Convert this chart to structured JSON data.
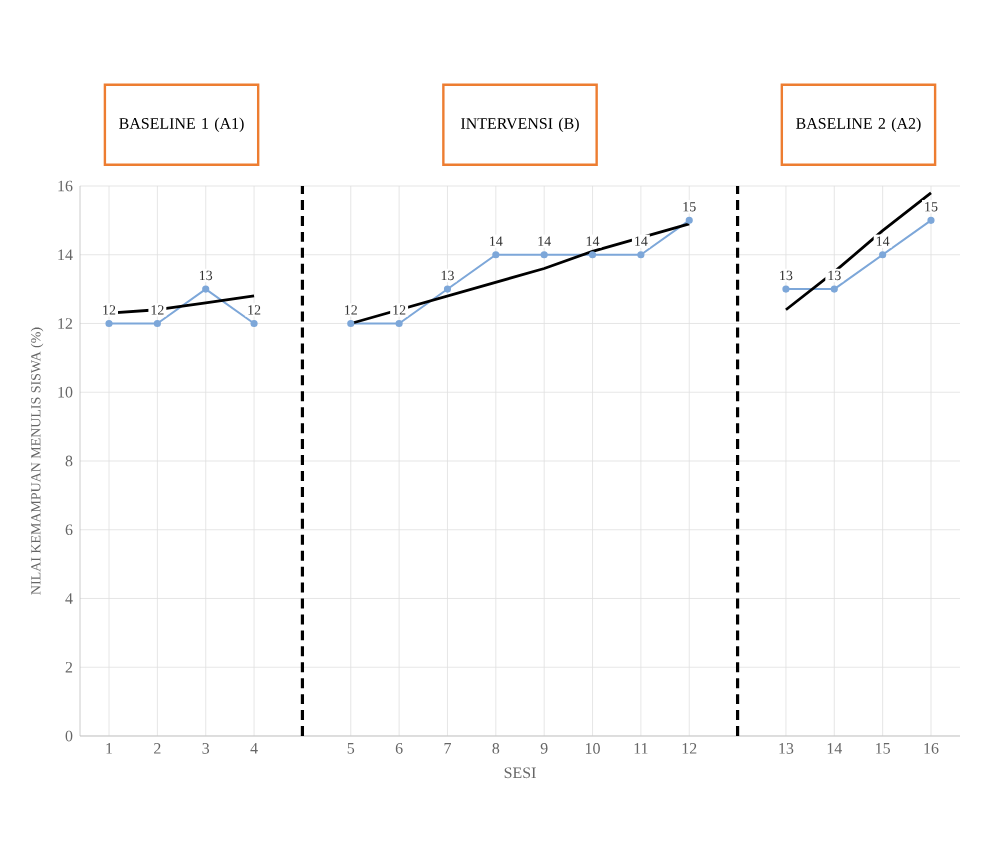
{
  "chart_data": {
    "type": "line",
    "xlabel": "SESI",
    "ylabel": "NILAI KEMAMPUAN MENULIS SISWA (%)",
    "annotations": [
      "BASELINE 1 (A1)",
      "INTERVENSI (B)",
      "BASELINE 2 (A2)"
    ],
    "categories": [
      "1",
      "2",
      "3",
      "4",
      null,
      "5",
      "6",
      "7",
      "8",
      "9",
      "10",
      "11",
      "12",
      null,
      "13",
      "14",
      "15",
      "16"
    ],
    "series": [
      {
        "color": "#7da7d9",
        "values": [
          12,
          12,
          13,
          12,
          null,
          12,
          12,
          13,
          14,
          14,
          14,
          14,
          15,
          null,
          13,
          13,
          14,
          15
        ],
        "value_labels": [
          "12",
          "12",
          "13",
          "12",
          null,
          "12",
          "12",
          "13",
          "14",
          "14",
          "14",
          "14",
          "15",
          null,
          "13",
          "13",
          "14",
          "15"
        ],
        "marker": "circle"
      },
      {
        "color": "#000000",
        "values": [
          12.3,
          12.4,
          12.6,
          12.8,
          null,
          12.0,
          12.4,
          12.8,
          13.2,
          13.6,
          14.1,
          14.5,
          14.9,
          null,
          12.4,
          13.5,
          14.7,
          15.8
        ],
        "marker": "none"
      }
    ],
    "ylim": [
      0,
      16
    ],
    "yticks": [
      0,
      2,
      4,
      6,
      8,
      10,
      12,
      14,
      16
    ],
    "grid": true,
    "line_style": "solid"
  }
}
